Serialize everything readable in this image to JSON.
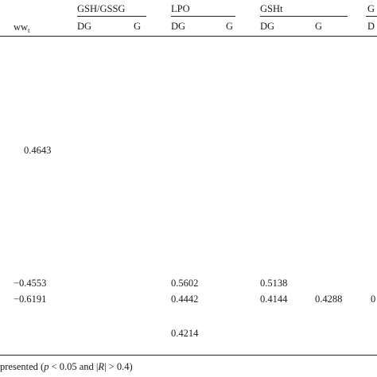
{
  "header": {
    "row_label": "ww",
    "row_label_sub": "t",
    "groups": [
      {
        "label": "GSH/GSSG",
        "cols": [
          "DG",
          "G"
        ]
      },
      {
        "label": "LPO",
        "cols": [
          "DG",
          "G"
        ]
      },
      {
        "label": "GSHt",
        "cols": [
          "DG",
          "G"
        ]
      },
      {
        "label": "G",
        "cols": [
          "D"
        ]
      }
    ]
  },
  "cells": {
    "r1_gsh_dg": "0.4643",
    "r2_gsh_dg": "−0.4553",
    "r2_lpo_dg": "0.5602",
    "r2_gsht_dg": "0.5138",
    "r3_gsh_dg": "−0.6191",
    "r3_lpo_dg": "0.4442",
    "r3_gsht_dg": "0.4144",
    "r3_gsht_g": "0.4288",
    "r3_last": "0",
    "r4_lpo_dg": "0.4214"
  },
  "footnote": {
    "pre": "presented (",
    "p": "p",
    "mid": " < 0.05 and |",
    "r": "R",
    "post": "| > 0.4)"
  }
}
